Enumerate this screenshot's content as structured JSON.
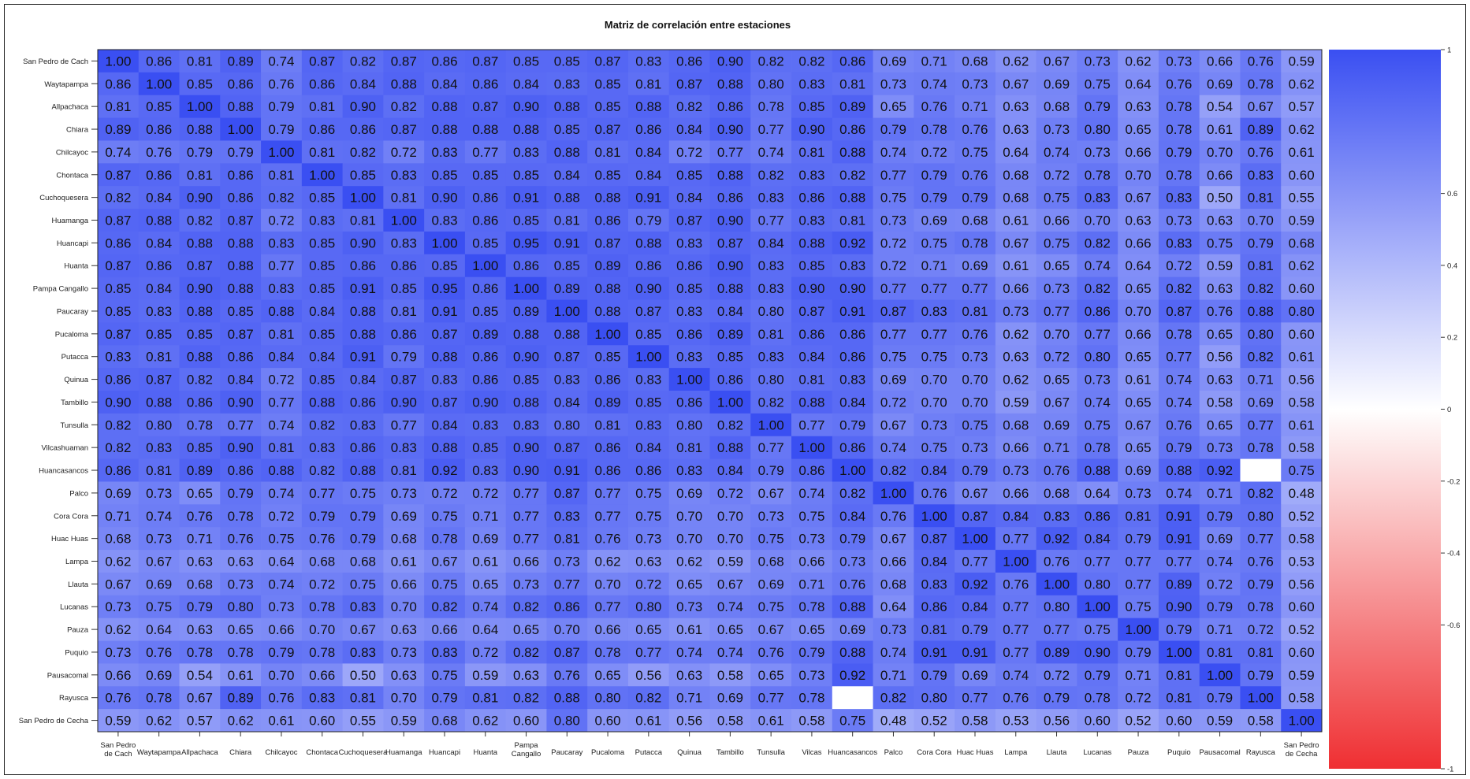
{
  "chart_data": {
    "type": "heatmap",
    "title": "Matriz de correlación entre estaciones",
    "row_labels": [
      "San Pedro de Cach",
      "Waytapampa",
      "Allpachaca",
      "Chiara",
      "Chilcayoc",
      "Chontaca",
      "Cuchoquesera",
      "Huamanga",
      "Huancapi",
      "Huanta",
      "Pampa Cangallo",
      "Paucaray",
      "Pucaloma",
      "Putacca",
      "Quinua",
      "Tambillo",
      "Tunsulla",
      "Vilcashuaman",
      "Huancasancos",
      "Palco",
      "Cora Cora",
      "Huac Huas",
      "Lampa",
      "Llauta",
      "Lucanas",
      "Pauza",
      "Puquio",
      "Pausacomal",
      "Rayusca",
      "San Pedro de Cecha"
    ],
    "col_labels": [
      [
        "San Pedro",
        "de Cach"
      ],
      [
        "Waytapampa"
      ],
      [
        "Allpachaca"
      ],
      [
        "Chiara"
      ],
      [
        "Chilcayoc"
      ],
      [
        "Chontaca"
      ],
      [
        "Cuchoquesera"
      ],
      [
        "Huamanga"
      ],
      [
        "Huancapi"
      ],
      [
        "Huanta"
      ],
      [
        "Pampa",
        "Cangallo"
      ],
      [
        "Paucaray"
      ],
      [
        "Pucaloma"
      ],
      [
        "Putacca"
      ],
      [
        "Quinua"
      ],
      [
        "Tambillo"
      ],
      [
        "Tunsulla"
      ],
      [
        "Vilcas"
      ],
      [
        "Huancasancos"
      ],
      [
        "Palco"
      ],
      [
        "Cora Cora"
      ],
      [
        "Huac Huas"
      ],
      [
        "Lampa"
      ],
      [
        "Llauta"
      ],
      [
        "Lucanas"
      ],
      [
        "Pauza"
      ],
      [
        "Puquio"
      ],
      [
        "Pausacomal"
      ],
      [
        "Rayusca"
      ],
      [
        "San Pedro",
        "de Cecha"
      ]
    ],
    "values": [
      [
        1.0,
        0.86,
        0.81,
        0.89,
        0.74,
        0.87,
        0.82,
        0.87,
        0.86,
        0.87,
        0.85,
        0.85,
        0.87,
        0.83,
        0.86,
        0.9,
        0.82,
        0.82,
        0.86,
        0.69,
        0.71,
        0.68,
        0.62,
        0.67,
        0.73,
        0.62,
        0.73,
        0.66,
        0.76,
        0.59
      ],
      [
        0.86,
        1.0,
        0.85,
        0.86,
        0.76,
        0.86,
        0.84,
        0.88,
        0.84,
        0.86,
        0.84,
        0.83,
        0.85,
        0.81,
        0.87,
        0.88,
        0.8,
        0.83,
        0.81,
        0.73,
        0.74,
        0.73,
        0.67,
        0.69,
        0.75,
        0.64,
        0.76,
        0.69,
        0.78,
        0.62
      ],
      [
        0.81,
        0.85,
        1.0,
        0.88,
        0.79,
        0.81,
        0.9,
        0.82,
        0.88,
        0.87,
        0.9,
        0.88,
        0.85,
        0.88,
        0.82,
        0.86,
        0.78,
        0.85,
        0.89,
        0.65,
        0.76,
        0.71,
        0.63,
        0.68,
        0.79,
        0.63,
        0.78,
        0.54,
        0.67,
        0.57
      ],
      [
        0.89,
        0.86,
        0.88,
        1.0,
        0.79,
        0.86,
        0.86,
        0.87,
        0.88,
        0.88,
        0.88,
        0.85,
        0.87,
        0.86,
        0.84,
        0.9,
        0.77,
        0.9,
        0.86,
        0.79,
        0.78,
        0.76,
        0.63,
        0.73,
        0.8,
        0.65,
        0.78,
        0.61,
        0.89,
        0.62
      ],
      [
        0.74,
        0.76,
        0.79,
        0.79,
        1.0,
        0.81,
        0.82,
        0.72,
        0.83,
        0.77,
        0.83,
        0.88,
        0.81,
        0.84,
        0.72,
        0.77,
        0.74,
        0.81,
        0.88,
        0.74,
        0.72,
        0.75,
        0.64,
        0.74,
        0.73,
        0.66,
        0.79,
        0.7,
        0.76,
        0.61
      ],
      [
        0.87,
        0.86,
        0.81,
        0.86,
        0.81,
        1.0,
        0.85,
        0.83,
        0.85,
        0.85,
        0.85,
        0.84,
        0.85,
        0.84,
        0.85,
        0.88,
        0.82,
        0.83,
        0.82,
        0.77,
        0.79,
        0.76,
        0.68,
        0.72,
        0.78,
        0.7,
        0.78,
        0.66,
        0.83,
        0.6
      ],
      [
        0.82,
        0.84,
        0.9,
        0.86,
        0.82,
        0.85,
        1.0,
        0.81,
        0.9,
        0.86,
        0.91,
        0.88,
        0.88,
        0.91,
        0.84,
        0.86,
        0.83,
        0.86,
        0.88,
        0.75,
        0.79,
        0.79,
        0.68,
        0.75,
        0.83,
        0.67,
        0.83,
        0.5,
        0.81,
        0.55
      ],
      [
        0.87,
        0.88,
        0.82,
        0.87,
        0.72,
        0.83,
        0.81,
        1.0,
        0.83,
        0.86,
        0.85,
        0.81,
        0.86,
        0.79,
        0.87,
        0.9,
        0.77,
        0.83,
        0.81,
        0.73,
        0.69,
        0.68,
        0.61,
        0.66,
        0.7,
        0.63,
        0.73,
        0.63,
        0.7,
        0.59
      ],
      [
        0.86,
        0.84,
        0.88,
        0.88,
        0.83,
        0.85,
        0.9,
        0.83,
        1.0,
        0.85,
        0.95,
        0.91,
        0.87,
        0.88,
        0.83,
        0.87,
        0.84,
        0.88,
        0.92,
        0.72,
        0.75,
        0.78,
        0.67,
        0.75,
        0.82,
        0.66,
        0.83,
        0.75,
        0.79,
        0.68
      ],
      [
        0.87,
        0.86,
        0.87,
        0.88,
        0.77,
        0.85,
        0.86,
        0.86,
        0.85,
        1.0,
        0.86,
        0.85,
        0.89,
        0.86,
        0.86,
        0.9,
        0.83,
        0.85,
        0.83,
        0.72,
        0.71,
        0.69,
        0.61,
        0.65,
        0.74,
        0.64,
        0.72,
        0.59,
        0.81,
        0.62
      ],
      [
        0.85,
        0.84,
        0.9,
        0.88,
        0.83,
        0.85,
        0.91,
        0.85,
        0.95,
        0.86,
        1.0,
        0.89,
        0.88,
        0.9,
        0.85,
        0.88,
        0.83,
        0.9,
        0.9,
        0.77,
        0.77,
        0.77,
        0.66,
        0.73,
        0.82,
        0.65,
        0.82,
        0.63,
        0.82,
        0.6
      ],
      [
        0.85,
        0.83,
        0.88,
        0.85,
        0.88,
        0.84,
        0.88,
        0.81,
        0.91,
        0.85,
        0.89,
        1.0,
        0.88,
        0.87,
        0.83,
        0.84,
        0.8,
        0.87,
        0.91,
        0.87,
        0.83,
        0.81,
        0.73,
        0.77,
        0.86,
        0.7,
        0.87,
        0.76,
        0.88,
        0.8
      ],
      [
        0.87,
        0.85,
        0.85,
        0.87,
        0.81,
        0.85,
        0.88,
        0.86,
        0.87,
        0.89,
        0.88,
        0.88,
        1.0,
        0.85,
        0.86,
        0.89,
        0.81,
        0.86,
        0.86,
        0.77,
        0.77,
        0.76,
        0.62,
        0.7,
        0.77,
        0.66,
        0.78,
        0.65,
        0.8,
        0.6
      ],
      [
        0.83,
        0.81,
        0.88,
        0.86,
        0.84,
        0.84,
        0.91,
        0.79,
        0.88,
        0.86,
        0.9,
        0.87,
        0.85,
        1.0,
        0.83,
        0.85,
        0.83,
        0.84,
        0.86,
        0.75,
        0.75,
        0.73,
        0.63,
        0.72,
        0.8,
        0.65,
        0.77,
        0.56,
        0.82,
        0.61
      ],
      [
        0.86,
        0.87,
        0.82,
        0.84,
        0.72,
        0.85,
        0.84,
        0.87,
        0.83,
        0.86,
        0.85,
        0.83,
        0.86,
        0.83,
        1.0,
        0.86,
        0.8,
        0.81,
        0.83,
        0.69,
        0.7,
        0.7,
        0.62,
        0.65,
        0.73,
        0.61,
        0.74,
        0.63,
        0.71,
        0.56
      ],
      [
        0.9,
        0.88,
        0.86,
        0.9,
        0.77,
        0.88,
        0.86,
        0.9,
        0.87,
        0.9,
        0.88,
        0.84,
        0.89,
        0.85,
        0.86,
        1.0,
        0.82,
        0.88,
        0.84,
        0.72,
        0.7,
        0.7,
        0.59,
        0.67,
        0.74,
        0.65,
        0.74,
        0.58,
        0.69,
        0.58
      ],
      [
        0.82,
        0.8,
        0.78,
        0.77,
        0.74,
        0.82,
        0.83,
        0.77,
        0.84,
        0.83,
        0.83,
        0.8,
        0.81,
        0.83,
        0.8,
        0.82,
        1.0,
        0.77,
        0.79,
        0.67,
        0.73,
        0.75,
        0.68,
        0.69,
        0.75,
        0.67,
        0.76,
        0.65,
        0.77,
        0.61
      ],
      [
        0.82,
        0.83,
        0.85,
        0.9,
        0.81,
        0.83,
        0.86,
        0.83,
        0.88,
        0.85,
        0.9,
        0.87,
        0.86,
        0.84,
        0.81,
        0.88,
        0.77,
        1.0,
        0.86,
        0.74,
        0.75,
        0.73,
        0.66,
        0.71,
        0.78,
        0.65,
        0.79,
        0.73,
        0.78,
        0.58
      ],
      [
        0.86,
        0.81,
        0.89,
        0.86,
        0.88,
        0.82,
        0.88,
        0.81,
        0.92,
        0.83,
        0.9,
        0.91,
        0.86,
        0.86,
        0.83,
        0.84,
        0.79,
        0.86,
        1.0,
        0.82,
        0.84,
        0.79,
        0.73,
        0.76,
        0.88,
        0.69,
        0.88,
        0.92,
        null,
        0.75
      ],
      [
        0.69,
        0.73,
        0.65,
        0.79,
        0.74,
        0.77,
        0.75,
        0.73,
        0.72,
        0.72,
        0.77,
        0.87,
        0.77,
        0.75,
        0.69,
        0.72,
        0.67,
        0.74,
        0.82,
        1.0,
        0.76,
        0.67,
        0.66,
        0.68,
        0.64,
        0.73,
        0.74,
        0.71,
        0.82,
        0.48
      ],
      [
        0.71,
        0.74,
        0.76,
        0.78,
        0.72,
        0.79,
        0.79,
        0.69,
        0.75,
        0.71,
        0.77,
        0.83,
        0.77,
        0.75,
        0.7,
        0.7,
        0.73,
        0.75,
        0.84,
        0.76,
        1.0,
        0.87,
        0.84,
        0.83,
        0.86,
        0.81,
        0.91,
        0.79,
        0.8,
        0.52
      ],
      [
        0.68,
        0.73,
        0.71,
        0.76,
        0.75,
        0.76,
        0.79,
        0.68,
        0.78,
        0.69,
        0.77,
        0.81,
        0.76,
        0.73,
        0.7,
        0.7,
        0.75,
        0.73,
        0.79,
        0.67,
        0.87,
        1.0,
        0.77,
        0.92,
        0.84,
        0.79,
        0.91,
        0.69,
        0.77,
        0.58
      ],
      [
        0.62,
        0.67,
        0.63,
        0.63,
        0.64,
        0.68,
        0.68,
        0.61,
        0.67,
        0.61,
        0.66,
        0.73,
        0.62,
        0.63,
        0.62,
        0.59,
        0.68,
        0.66,
        0.73,
        0.66,
        0.84,
        0.77,
        1.0,
        0.76,
        0.77,
        0.77,
        0.77,
        0.74,
        0.76,
        0.53
      ],
      [
        0.67,
        0.69,
        0.68,
        0.73,
        0.74,
        0.72,
        0.75,
        0.66,
        0.75,
        0.65,
        0.73,
        0.77,
        0.7,
        0.72,
        0.65,
        0.67,
        0.69,
        0.71,
        0.76,
        0.68,
        0.83,
        0.92,
        0.76,
        1.0,
        0.8,
        0.77,
        0.89,
        0.72,
        0.79,
        0.56
      ],
      [
        0.73,
        0.75,
        0.79,
        0.8,
        0.73,
        0.78,
        0.83,
        0.7,
        0.82,
        0.74,
        0.82,
        0.86,
        0.77,
        0.8,
        0.73,
        0.74,
        0.75,
        0.78,
        0.88,
        0.64,
        0.86,
        0.84,
        0.77,
        0.8,
        1.0,
        0.75,
        0.9,
        0.79,
        0.78,
        0.6
      ],
      [
        0.62,
        0.64,
        0.63,
        0.65,
        0.66,
        0.7,
        0.67,
        0.63,
        0.66,
        0.64,
        0.65,
        0.7,
        0.66,
        0.65,
        0.61,
        0.65,
        0.67,
        0.65,
        0.69,
        0.73,
        0.81,
        0.79,
        0.77,
        0.77,
        0.75,
        1.0,
        0.79,
        0.71,
        0.72,
        0.52
      ],
      [
        0.73,
        0.76,
        0.78,
        0.78,
        0.79,
        0.78,
        0.83,
        0.73,
        0.83,
        0.72,
        0.82,
        0.87,
        0.78,
        0.77,
        0.74,
        0.74,
        0.76,
        0.79,
        0.88,
        0.74,
        0.91,
        0.91,
        0.77,
        0.89,
        0.9,
        0.79,
        1.0,
        0.81,
        0.81,
        0.6
      ],
      [
        0.66,
        0.69,
        0.54,
        0.61,
        0.7,
        0.66,
        0.5,
        0.63,
        0.75,
        0.59,
        0.63,
        0.76,
        0.65,
        0.56,
        0.63,
        0.58,
        0.65,
        0.73,
        0.92,
        0.71,
        0.79,
        0.69,
        0.74,
        0.72,
        0.79,
        0.71,
        0.81,
        1.0,
        0.79,
        0.59
      ],
      [
        0.76,
        0.78,
        0.67,
        0.89,
        0.76,
        0.83,
        0.81,
        0.7,
        0.79,
        0.81,
        0.82,
        0.88,
        0.8,
        0.82,
        0.71,
        0.69,
        0.77,
        0.78,
        null,
        0.82,
        0.8,
        0.77,
        0.76,
        0.79,
        0.78,
        0.72,
        0.81,
        0.79,
        1.0,
        0.58
      ],
      [
        0.59,
        0.62,
        0.57,
        0.62,
        0.61,
        0.6,
        0.55,
        0.59,
        0.68,
        0.62,
        0.6,
        0.8,
        0.6,
        0.61,
        0.56,
        0.58,
        0.61,
        0.58,
        0.75,
        0.48,
        0.52,
        0.58,
        0.53,
        0.56,
        0.6,
        0.52,
        0.6,
        0.59,
        0.58,
        1.0
      ]
    ],
    "colorbar": {
      "range": [
        -1,
        1
      ],
      "ticks": [
        {
          "value": 1,
          "label": "1"
        },
        {
          "value": 0.6,
          "label": "0.6"
        },
        {
          "value": 0.4,
          "label": "0.4"
        },
        {
          "value": 0.2,
          "label": "0.2"
        },
        {
          "value": 0,
          "label": "0"
        },
        {
          "value": -0.2,
          "label": "-0.2"
        },
        {
          "value": -0.4,
          "label": "-0.4"
        },
        {
          "value": -0.6,
          "label": "-0.6"
        },
        {
          "value": -1,
          "label": "-1"
        }
      ],
      "colors": {
        "high": "#3a4ff2",
        "mid": "#ffffff",
        "low": "#ef2f32"
      },
      "placement": "right"
    }
  }
}
